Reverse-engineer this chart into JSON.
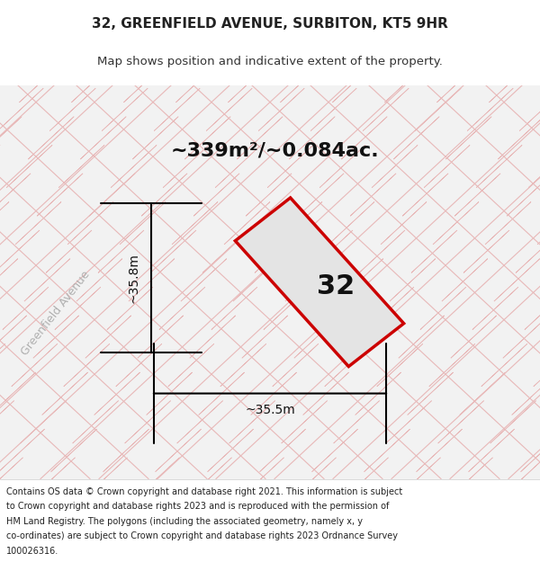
{
  "title_line1": "32, GREENFIELD AVENUE, SURBITON, KT5 9HR",
  "title_line2": "Map shows position and indicative extent of the property.",
  "area_label": "~339m²/~0.084ac.",
  "property_number": "32",
  "dim_height": "~35.8m",
  "dim_width": "~35.5m",
  "street_label": "Greenfield Avenue",
  "footer_lines": [
    "Contains OS data © Crown copyright and database right 2021. This information is subject",
    "to Crown copyright and database rights 2023 and is reproduced with the permission of",
    "HM Land Registry. The polygons (including the associated geometry, namely x, y",
    "co-ordinates) are subject to Crown copyright and database rights 2023 Ordnance Survey",
    "100026316."
  ],
  "bg_color": "#f2f2f2",
  "property_fill": "#e4e4e4",
  "property_edge": "#cc0000",
  "tile_fill_color": "#d8d8d8",
  "tile_line_color": "#e8b8b8",
  "title_fontsize": 11,
  "subtitle_fontsize": 9.5,
  "area_fontsize": 16,
  "dim_fontsize": 10,
  "footer_fontsize": 7.0,
  "street_fontsize": 9
}
